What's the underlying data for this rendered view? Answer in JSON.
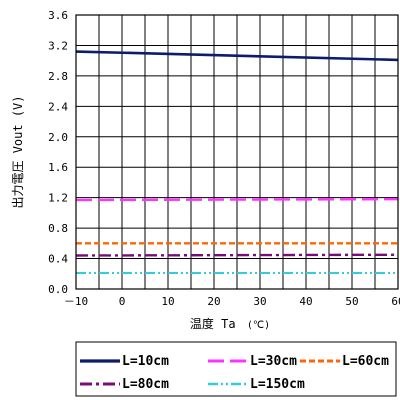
{
  "chart_data": {
    "type": "line",
    "title": "",
    "xlabel": "温度 Ta",
    "xlabel_unit": "(℃)",
    "ylabel": "出力電圧 Vout (V)",
    "xlim": [
      -10,
      60
    ],
    "ylim": [
      0,
      3.6
    ],
    "x_ticks": [
      -10,
      0,
      10,
      20,
      30,
      40,
      50,
      60
    ],
    "x_tick_labels": [
      "－10",
      "0",
      "10",
      "20",
      "30",
      "40",
      "50",
      "60"
    ],
    "y_ticks": [
      0,
      0.4,
      0.8,
      1.2,
      1.6,
      2.0,
      2.4,
      2.8,
      3.2,
      3.6
    ],
    "y_tick_labels": [
      "0.0",
      "0.4",
      "0.8",
      "1.2",
      "1.6",
      "2.0",
      "2.4",
      "2.8",
      "3.2",
      "3.6"
    ],
    "grid": true,
    "legend_position": "bottom",
    "series": [
      {
        "name": "L=10cm",
        "color": "#0d1b6e",
        "dash": "solid",
        "x": [
          -10,
          60
        ],
        "y": [
          3.12,
          3.01
        ]
      },
      {
        "name": "L=30cm",
        "color": "#ff33ff",
        "dash": "long-dash",
        "x": [
          -10,
          60
        ],
        "y": [
          1.17,
          1.18
        ]
      },
      {
        "name": "L=60cm",
        "color": "#ff6600",
        "dash": "dash",
        "x": [
          -10,
          60
        ],
        "y": [
          0.6,
          0.6
        ]
      },
      {
        "name": "L=80cm",
        "color": "#7a0c7a",
        "dash": "dash-dot",
        "x": [
          -10,
          60
        ],
        "y": [
          0.44,
          0.45
        ]
      },
      {
        "name": "L=150cm",
        "color": "#33ccdd",
        "dash": "dash-dot-dot",
        "x": [
          -10,
          60
        ],
        "y": [
          0.21,
          0.21
        ]
      }
    ]
  }
}
